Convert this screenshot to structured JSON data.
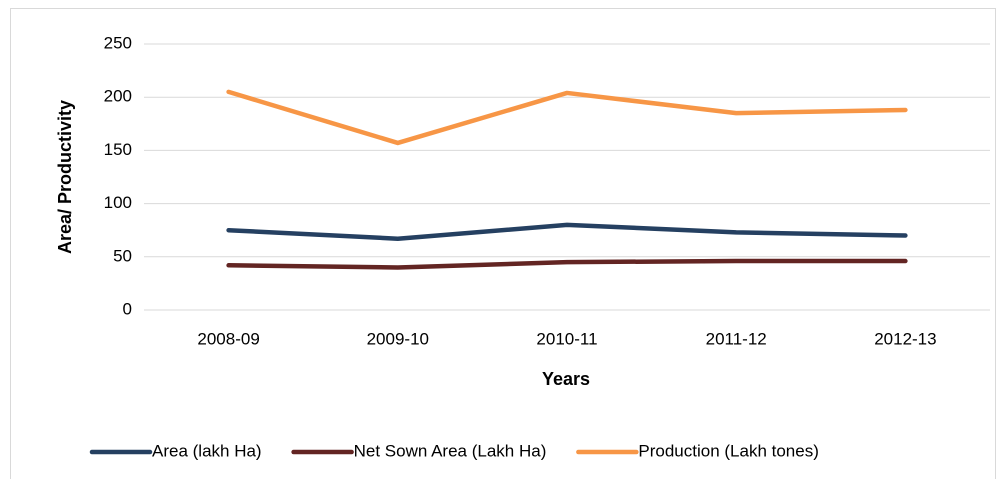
{
  "chart_data": {
    "type": "line",
    "x_label": "Years",
    "y_label": "Area/ Productivity",
    "categories": [
      "2008-09",
      "2009-10",
      "2010-11",
      "2011-12",
      "2012-13"
    ],
    "series": [
      {
        "name": "Area (lakh Ha)",
        "color": "#254061",
        "values": [
          75,
          67,
          80,
          73,
          70
        ]
      },
      {
        "name": "Net Sown Area (Lakh Ha)",
        "color": "#632523",
        "values": [
          42,
          40,
          45,
          46,
          46
        ]
      },
      {
        "name": "Production (Lakh tones)",
        "color": "#f79646",
        "values": [
          205,
          157,
          204,
          185,
          188
        ]
      }
    ],
    "ylim": [
      0,
      250
    ],
    "yticks": [
      0,
      50,
      100,
      150,
      200,
      250
    ],
    "grid": true,
    "legend": "bottom"
  }
}
